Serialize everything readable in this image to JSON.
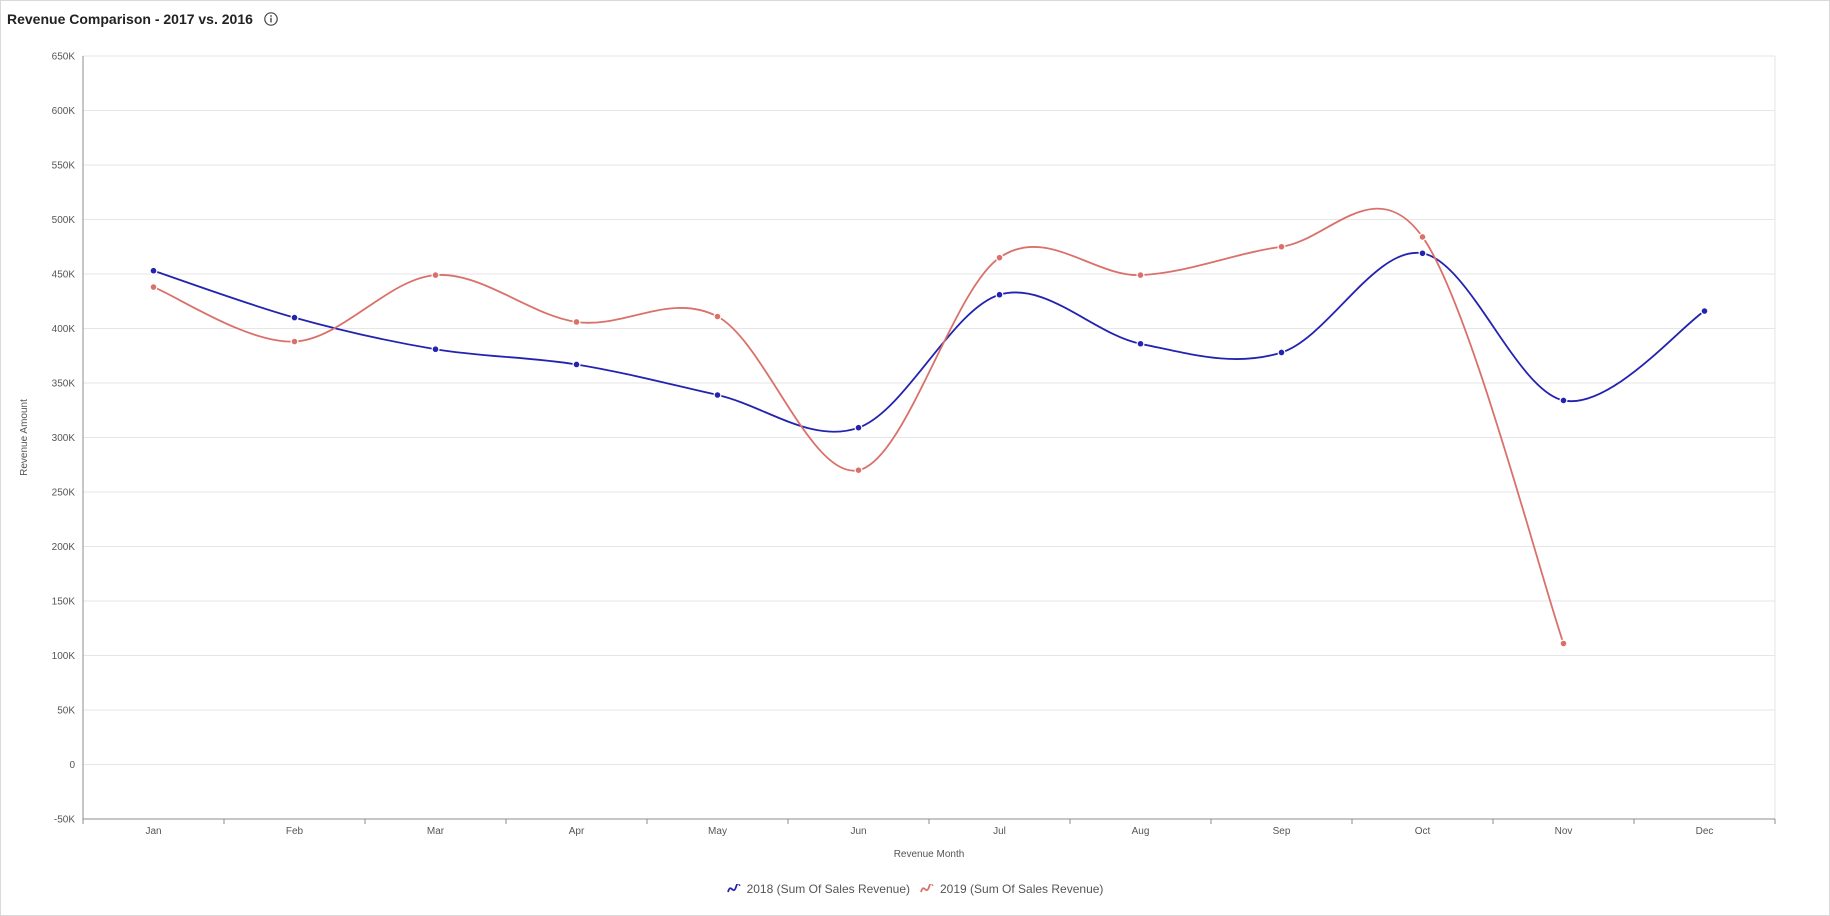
{
  "panel": {
    "title": "Revenue Comparison - 2017 vs. 2016",
    "info_icon": "info-circle-icon"
  },
  "colors": {
    "series_2018": "#2323b0",
    "series_2019": "#d9716a",
    "grid": "#e6e6e6",
    "axis": "#8c8c8c",
    "text": "#555555"
  },
  "chart_data": {
    "type": "line",
    "smooth": true,
    "xlabel": "Revenue Month",
    "ylabel": "Revenue Amount",
    "categories": [
      "Jan",
      "Feb",
      "Mar",
      "Apr",
      "May",
      "Jun",
      "Jul",
      "Aug",
      "Sep",
      "Oct",
      "Nov",
      "Dec"
    ],
    "ylim": [
      -50000,
      650000
    ],
    "yticks": [
      -50000,
      0,
      50000,
      100000,
      150000,
      200000,
      250000,
      300000,
      350000,
      400000,
      450000,
      500000,
      550000,
      600000,
      650000
    ],
    "ytick_labels": [
      "-50K",
      "0",
      "50K",
      "100K",
      "150K",
      "200K",
      "250K",
      "300K",
      "350K",
      "400K",
      "450K",
      "500K",
      "550K",
      "600K",
      "650K"
    ],
    "grid": true,
    "legend_position": "bottom-center",
    "series": [
      {
        "name": "2018 (Sum Of Sales Revenue)",
        "color": "#2323b0",
        "values": [
          453000,
          410000,
          381000,
          367000,
          339000,
          309000,
          431000,
          386000,
          378000,
          469000,
          334000,
          416000
        ]
      },
      {
        "name": "2019 (Sum Of Sales Revenue)",
        "color": "#d9716a",
        "values": [
          438000,
          388000,
          449000,
          406000,
          411000,
          270000,
          465000,
          449000,
          475000,
          484000,
          111000,
          null
        ]
      }
    ]
  }
}
